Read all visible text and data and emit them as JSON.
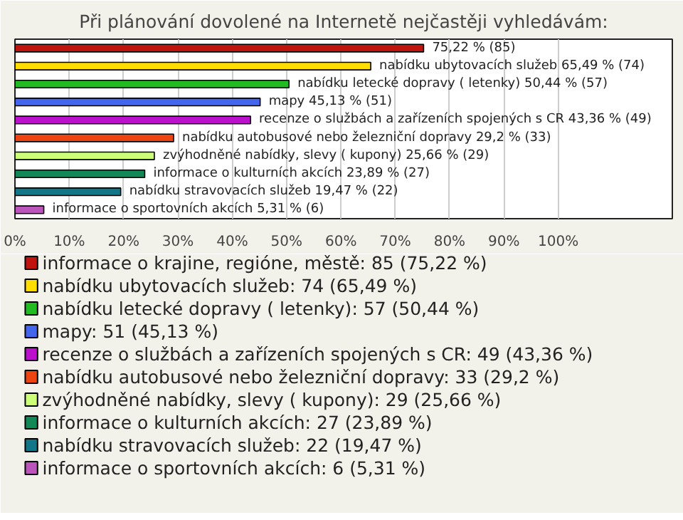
{
  "chart_data": {
    "type": "bar",
    "orientation": "horizontal",
    "title": "Při plánování dovolené na Internetě nejčastěji vyhledávám:",
    "categories": [
      null,
      null,
      null,
      null,
      null,
      null,
      null,
      null,
      null,
      null
    ],
    "series": [
      {
        "name": "informace o krajine, regióne, městě: 85 (75,22 %)",
        "color": "#c0150f",
        "values": [
          75.22,
          null,
          null,
          null,
          null,
          null,
          null,
          null,
          null,
          null
        ],
        "value_labels": [
          "75,22 % (85)",
          null,
          null,
          null,
          null,
          null,
          null,
          null,
          null,
          null
        ]
      },
      {
        "name": "nabídku ubytovacích služeb: 74 (65,49 %)",
        "color": "#ffdd00",
        "values": [
          null,
          65.49,
          null,
          null,
          null,
          null,
          null,
          null,
          null,
          null
        ],
        "value_labels": [
          null,
          "nabídku ubytovacích služeb 65,49 % (74)",
          null,
          null,
          null,
          null,
          null,
          null,
          null,
          null
        ]
      },
      {
        "name": "nabídku letecké dopravy ( letenky): 57 (50,44 %)",
        "color": "#22bb22",
        "values": [
          null,
          null,
          50.44,
          null,
          null,
          null,
          null,
          null,
          null,
          null
        ],
        "value_labels": [
          null,
          null,
          "nabídku letecké dopravy ( letenky) 50,44 % (57)",
          null,
          null,
          null,
          null,
          null,
          null,
          null
        ]
      },
      {
        "name": "mapy: 51 (45,13 %)",
        "color": "#4466ee",
        "values": [
          null,
          null,
          null,
          45.13,
          null,
          null,
          null,
          null,
          null,
          null
        ],
        "value_labels": [
          null,
          null,
          null,
          "mapy 45,13 % (51)",
          null,
          null,
          null,
          null,
          null,
          null
        ]
      },
      {
        "name": "recenze o službách a zařízeních spojených s CR: 49 (43,36 %)",
        "color": "#bb11cc",
        "values": [
          null,
          null,
          null,
          null,
          43.36,
          null,
          null,
          null,
          null,
          null
        ],
        "value_labels": [
          null,
          null,
          null,
          null,
          "recenze o službách a zařízeních spojených s CR 43,36 % (49)",
          null,
          null,
          null,
          null,
          null
        ]
      },
      {
        "name": "nabídku autobusové nebo železniční dopravy: 33 (29,2 %)",
        "color": "#ee4411",
        "values": [
          null,
          null,
          null,
          null,
          null,
          29.2,
          null,
          null,
          null,
          null
        ],
        "value_labels": [
          null,
          null,
          null,
          null,
          null,
          "nabídku autobusové nebo železniční dopravy 29,2 % (33)",
          null,
          null,
          null,
          null
        ]
      },
      {
        "name": "zvýhodněné nabídky, slevy ( kupony): 29 (25,66 %)",
        "color": "#ccff77",
        "values": [
          null,
          null,
          null,
          null,
          null,
          null,
          25.66,
          null,
          null,
          null
        ],
        "value_labels": [
          null,
          null,
          null,
          null,
          null,
          null,
          "zvýhodněné nabídky, slevy ( kupony) 25,66 % (29)",
          null,
          null,
          null
        ]
      },
      {
        "name": "informace o kulturních akcích: 27 (23,89 %)",
        "color": "#118855",
        "values": [
          null,
          null,
          null,
          null,
          null,
          null,
          null,
          23.89,
          null,
          null
        ],
        "value_labels": [
          null,
          null,
          null,
          null,
          null,
          null,
          null,
          "informace o kulturních akcích 23,89 % (27)",
          null,
          null
        ]
      },
      {
        "name": "nabídku stravovacích služeb: 22 (19,47 %)",
        "color": "#117788",
        "values": [
          null,
          null,
          null,
          null,
          null,
          null,
          null,
          null,
          19.47,
          null
        ],
        "value_labels": [
          null,
          null,
          null,
          null,
          null,
          null,
          null,
          null,
          "nabídku stravovacích služeb 19,47 % (22)",
          null
        ]
      },
      {
        "name": "informace o sportovních akcích: 6 (5,31 %)",
        "color": "#bb55bb",
        "values": [
          null,
          null,
          null,
          null,
          null,
          null,
          null,
          null,
          null,
          5.31
        ],
        "value_labels": [
          null,
          null,
          null,
          null,
          null,
          null,
          null,
          null,
          null,
          "informace o sportovních akcích 5,31 % (6)"
        ]
      }
    ],
    "xlim": [
      0,
      121
    ],
    "xticks": [
      {
        "value": 0,
        "label": "0%"
      },
      {
        "value": 10,
        "label": "10%"
      },
      {
        "value": 20,
        "label": "20%"
      },
      {
        "value": 30,
        "label": "30%"
      },
      {
        "value": 40,
        "label": "40%"
      },
      {
        "value": 50,
        "label": "50%"
      },
      {
        "value": 60,
        "label": "60%"
      },
      {
        "value": 70,
        "label": "70%"
      },
      {
        "value": 80,
        "label": "80%"
      },
      {
        "value": 90,
        "label": "90%"
      },
      {
        "value": 100,
        "label": "100%"
      }
    ],
    "grid": "x",
    "legend": "bottom",
    "tick_labels": "x"
  }
}
